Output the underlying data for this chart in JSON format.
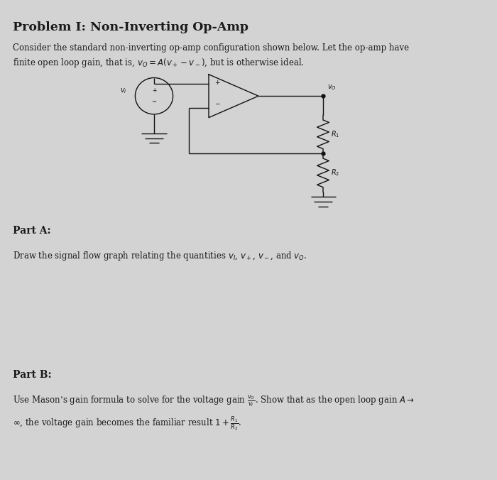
{
  "title": "Problem I: Non-Inverting Op-Amp",
  "bg_color": "#d3d3d3",
  "text_color": "#1a1a1a",
  "intro_line1": "Consider the standard non-inverting op-amp configuration shown below. Let the op-amp have",
  "intro_line2": "finite open loop gain, that is, $v_O = A(v_+ - v_-)$, but is otherwise ideal.",
  "part_a_title": "Part A:",
  "part_a_text": "Draw the signal flow graph relating the quantities $v_I$, $v_+$, $v_-$, and $v_O$.",
  "part_b_title": "Part B:",
  "part_b_line1": "Use Mason’s gain formula to solve for the voltage gain $\\frac{v_O}{v_I}$. Show that as the open loop gain $A \\rightarrow$",
  "part_b_line2": "$\\infty$, the voltage gain becomes the familiar result $1 + \\frac{R_1}{R_2}$.",
  "lc": "#111111",
  "title_fontsize": 12.5,
  "body_fontsize": 8.5,
  "part_title_fontsize": 10.0
}
